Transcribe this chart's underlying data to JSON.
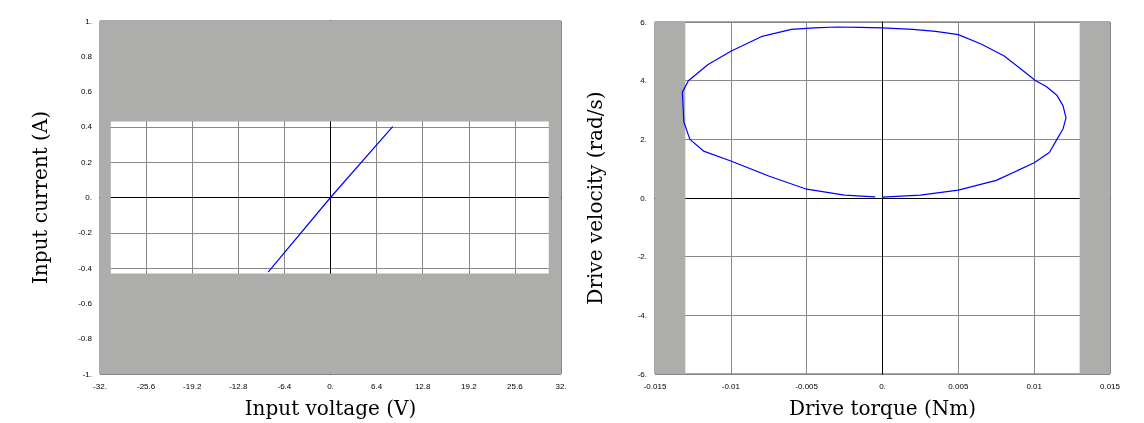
{
  "chart_data": [
    {
      "type": "line",
      "xlabel": "Input voltage (V)",
      "ylabel": "Input current (A)",
      "xlim": [
        -32,
        32
      ],
      "ylim": [
        -1,
        1
      ],
      "xticks": [
        {
          "value": -32,
          "label": "-32."
        },
        -25.6,
        -19.2,
        -12.8,
        -6.4,
        {
          "value": 0,
          "label": "0."
        },
        6.4,
        12.8,
        19.2,
        25.6,
        {
          "value": 32,
          "label": "32."
        }
      ],
      "yticks": [
        {
          "value": -1,
          "label": "-1."
        },
        -0.8,
        -0.6,
        -0.4,
        -0.2,
        {
          "value": 0,
          "label": "0."
        },
        0.2,
        0.4,
        0.6,
        0.8,
        {
          "value": 1,
          "label": "1."
        }
      ],
      "series": [
        {
          "color": "#0000ff",
          "x": [
            -8.6,
            0,
            8.6
          ],
          "values": [
            -0.42,
            0,
            0.4
          ]
        }
      ],
      "grid": true,
      "marker": "none",
      "line_style": "solid",
      "bands": [
        {
          "axis": "y",
          "from": 0.43,
          "to": 1,
          "color": "#adadab"
        },
        {
          "axis": "y",
          "from": -1,
          "to": -0.43,
          "color": "#adadab"
        },
        {
          "axis": "x",
          "from": -32,
          "to": -30.5,
          "color": "#adadab"
        },
        {
          "axis": "x",
          "from": 30.3,
          "to": 32,
          "color": "#adadab"
        }
      ]
    },
    {
      "type": "line",
      "xlabel": "Drive torque (Nm)",
      "ylabel": "Drive velocity (rad/s)",
      "xlim": [
        -0.015,
        0.015
      ],
      "ylim": [
        -6,
        6
      ],
      "xticks": [
        -0.015,
        -0.01,
        -0.005,
        {
          "value": 0,
          "label": "0."
        },
        0.005,
        0.01,
        0.015
      ],
      "yticks": [
        {
          "value": -6,
          "label": "-6."
        },
        {
          "value": -4,
          "label": "-4."
        },
        {
          "value": -2,
          "label": "-2."
        },
        {
          "value": 0,
          "label": "0."
        },
        {
          "value": 2,
          "label": "2."
        },
        {
          "value": 4,
          "label": "4."
        },
        {
          "value": 6,
          "label": "6."
        }
      ],
      "series": [
        {
          "color": "#0000ff",
          "x": [
            0,
            0.0025,
            0.005,
            0.0075,
            0.01,
            0.011,
            0.0115,
            0.0119,
            0.0121,
            0.0119,
            0.0115,
            0.0108,
            0.0101,
            0.009,
            0.008,
            0.0065,
            0.005,
            0.0035,
            0.002,
            0,
            -0.0015,
            -0.003,
            -0.0045,
            -0.006,
            -0.008,
            -0.01,
            -0.0115,
            -0.0128,
            -0.0132,
            -0.01315,
            -0.0131,
            -0.0127,
            -0.0118,
            -0.01,
            -0.0075,
            -0.005,
            -0.0025,
            -0.0005
          ],
          "values": [
            0.03,
            0.1,
            0.27,
            0.6,
            1.2,
            1.55,
            2,
            2.35,
            2.73,
            3.15,
            3.5,
            3.8,
            4,
            4.45,
            4.85,
            5.25,
            5.57,
            5.68,
            5.75,
            5.8,
            5.82,
            5.83,
            5.8,
            5.75,
            5.5,
            5,
            4.55,
            4,
            3.6,
            3.14,
            2.6,
            2,
            1.6,
            1.26,
            0.75,
            0.3,
            0.1,
            0.04
          ]
        }
      ],
      "grid": true,
      "marker": "none",
      "line_style": "solid",
      "bands": [
        {
          "axis": "x",
          "from": -0.015,
          "to": -0.013,
          "color": "#adadab"
        },
        {
          "axis": "x",
          "from": 0.013,
          "to": 0.015,
          "color": "#adadab"
        }
      ]
    }
  ]
}
